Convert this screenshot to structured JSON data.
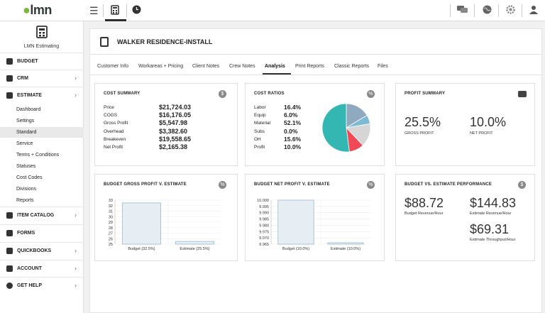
{
  "app": {
    "logo": "lmn"
  },
  "topbar": {
    "icons": [
      "menu-icon",
      "calculator-icon",
      "clock-icon",
      "chat-icon",
      "globe-icon",
      "gear-icon",
      "user-icon"
    ]
  },
  "sidebar": {
    "app_label": "LMN Estimating",
    "main": [
      {
        "label": "BUDGET",
        "icon": "budget-icon",
        "has_chevron": false
      },
      {
        "label": "CRM",
        "icon": "crm-icon",
        "has_chevron": true
      },
      {
        "label": "ESTIMATE",
        "icon": "estimate-icon",
        "has_chevron": true
      }
    ],
    "estimate_sub": [
      "Dashboard",
      "Settings",
      "Standard",
      "Service",
      "Terms + Conditions",
      "Statuses",
      "Cost Codes",
      "Divisions",
      "Reports"
    ],
    "active_sub": "Standard",
    "lower": [
      {
        "label": "ITEM CATALOG",
        "icon": "catalog-icon",
        "has_chevron": true
      },
      {
        "label": "FORMS",
        "icon": "forms-icon",
        "has_chevron": false
      },
      {
        "label": "QUICKBOOKS",
        "icon": "quickbooks-icon",
        "has_chevron": true
      },
      {
        "label": "ACCOUNT",
        "icon": "account-icon",
        "has_chevron": true
      },
      {
        "label": "GET HELP",
        "icon": "help-icon",
        "has_chevron": true
      }
    ]
  },
  "page": {
    "title": "WALKER RESIDENCE-INSTALL"
  },
  "tabs": [
    "Customer Info",
    "Workareas + Pricing",
    "Client Notes",
    "Crew Notes",
    "Analysis",
    "Print Reports",
    "Classic Reports",
    "Files"
  ],
  "active_tab": "Analysis",
  "cost_summary": {
    "title": "COST SUMMARY",
    "rows": [
      {
        "label": "Price",
        "value": "$21,724.03"
      },
      {
        "label": "COGS",
        "value": "$16,176.05"
      },
      {
        "label": "Gross Profit",
        "value": "$5,547.98"
      },
      {
        "label": "Overhead",
        "value": "$3,382.60"
      },
      {
        "label": "Breakeven",
        "value": "$19,558.65"
      },
      {
        "label": "Net Profit",
        "value": "$2,165.38"
      }
    ]
  },
  "cost_ratios": {
    "title": "COST RATIOS",
    "rows": [
      {
        "label": "Labor",
        "value": "16.4%"
      },
      {
        "label": "Equip",
        "value": "6.0%"
      },
      {
        "label": "Material",
        "value": "52.1%"
      },
      {
        "label": "Subs",
        "value": "0.0%"
      },
      {
        "label": "OH",
        "value": "15.6%"
      },
      {
        "label": "Profit",
        "value": "10.0%"
      }
    ]
  },
  "profit_summary": {
    "title": "PROFIT SUMMARY",
    "gross": {
      "value": "25.5%",
      "label": "GROSS PROFIT"
    },
    "net": {
      "value": "10.0%",
      "label": "NET PROFIT"
    }
  },
  "budget_vs_estimate": {
    "title": "BUDGET VS. ESTIMATE PERFORMANCE",
    "revenue": {
      "value": "$88.72",
      "label": "Budget Revenue/Hour"
    },
    "est_revenue": {
      "value": "$144.83",
      "label": "Estimate Revenue/Hour"
    },
    "throughput": {
      "value": "$69.31",
      "label": "Estimate Throughput/Hour"
    }
  },
  "chart_data": [
    {
      "type": "pie",
      "title": "COST RATIOS",
      "categories": [
        "Labor",
        "Equip",
        "Material",
        "Subs",
        "OH",
        "Profit"
      ],
      "values": [
        16.4,
        6.0,
        52.1,
        0.0,
        15.6,
        10.0
      ],
      "colors": [
        "#8fa9c1",
        "#7eb9d6",
        "#34b7b3",
        "#cccccc",
        "#d6d6d6",
        "#ee4a57"
      ]
    },
    {
      "type": "bar",
      "title": "BUDGET GROSS PROFIT V. ESTIMATE",
      "categories": [
        "Budget (32.5%)",
        "Estimate (25.5%)"
      ],
      "values": [
        32.5,
        25.5
      ],
      "ylim": [
        25,
        33
      ],
      "yticks": [
        "33",
        "32",
        "31",
        "30",
        "29",
        "28",
        "27",
        "26",
        "25"
      ]
    },
    {
      "type": "bar",
      "title": "BUDGET NET PROFIT V. ESTIMATE",
      "categories": [
        "Budget (10.0%)",
        "Estimate (10.0%)"
      ],
      "values": [
        10.0,
        9.965
      ],
      "ylim": [
        9.965,
        10.0
      ],
      "yticks": [
        "10.000",
        "9.995",
        "9.990",
        "9.985",
        "9.980",
        "9.975",
        "9.970",
        "9.965"
      ]
    }
  ]
}
